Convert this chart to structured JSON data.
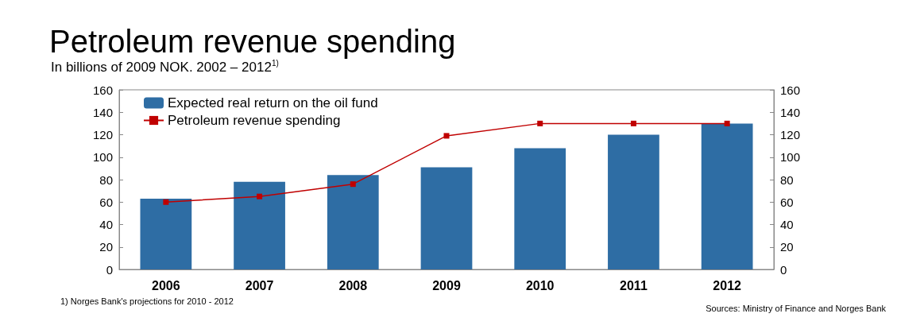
{
  "chart_data": {
    "type": "bar",
    "title": "Petroleum revenue spending",
    "subtitle": "In billions of 2009 NOK. 2002 – 2012$^{1)}$",
    "categories": [
      "2006",
      "2007",
      "2008",
      "2009",
      "2010",
      "2011",
      "2012"
    ],
    "series": [
      {
        "name": "Expected real return on the oil fund",
        "color": "#2e6da4",
        "values": [
          63,
          78,
          84,
          91,
          108,
          120,
          130
        ]
      },
      {
        "name": "Petroleum revenue spending",
        "type": "line",
        "color": "#c00000",
        "marker": "square",
        "values": [
          60,
          65,
          76,
          119,
          130,
          130,
          130
        ]
      }
    ],
    "ylim": [
      0,
      160
    ],
    "yticks": [
      0,
      20,
      40,
      60,
      80,
      100,
      120,
      140,
      160
    ],
    "y2lim": [
      0,
      160
    ],
    "y2ticks": [
      0,
      20,
      40,
      60,
      80,
      100,
      120,
      140,
      160
    ],
    "grid": false,
    "legend": "top left",
    "annotations": [
      "1) Norges Bank's projections for 2010 - 2012",
      "Sources: Ministry of Finance and Norges Bank"
    ]
  }
}
